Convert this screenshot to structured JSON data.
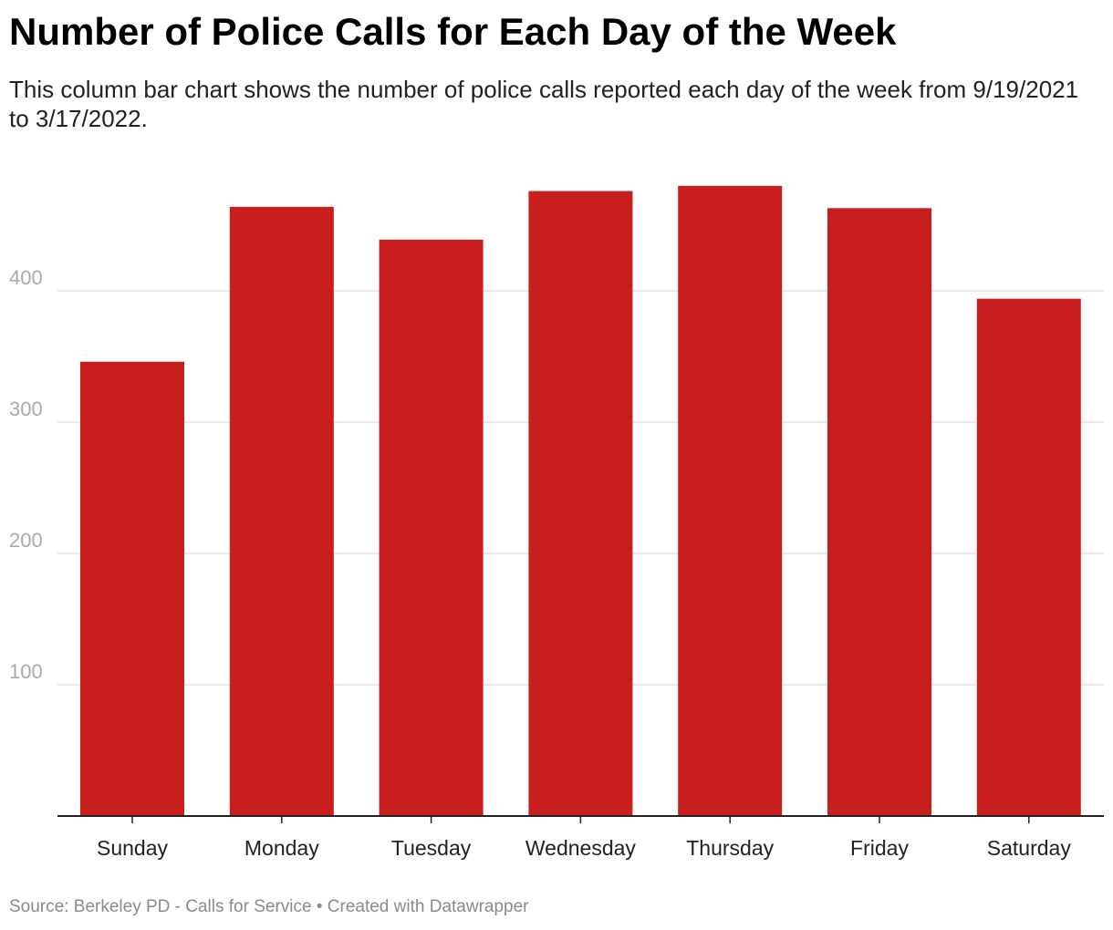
{
  "title": "Number of Police Calls for Each Day of the Week",
  "subtitle": "This column bar chart shows the number of police calls reported each day of the week from 9/19/2021 to 3/17/2022.",
  "footer": {
    "source_label": "Source:",
    "source": "Berkeley PD - Calls for Service",
    "separator": "•",
    "credit": "Created with Datawrapper"
  },
  "colors": {
    "bar": "#c81e1e",
    "grid": "#e2e2e2",
    "axis": "#222222"
  },
  "chart_data": {
    "type": "bar",
    "categories": [
      "Sunday",
      "Monday",
      "Tuesday",
      "Wednesday",
      "Thursday",
      "Friday",
      "Saturday"
    ],
    "values": [
      346,
      464,
      439,
      476,
      480,
      463,
      394
    ],
    "ylim": [
      0,
      480
    ],
    "yticks": [
      100,
      200,
      300,
      400
    ],
    "grid": true,
    "legend": false,
    "xlabel": "",
    "ylabel": ""
  }
}
